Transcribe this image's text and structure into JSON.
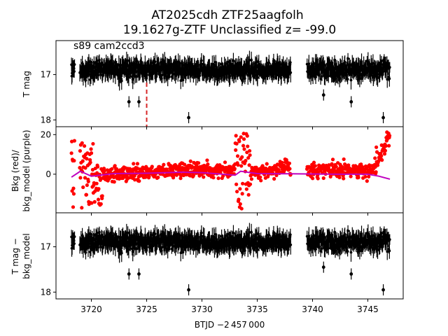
{
  "chart_data": {
    "title": [
      "AT2025cdh  ZTF25aagfolh",
      "19.1627g-ZTF Unclassified z= -99.0"
    ],
    "xlabel": "BTJD −2 457 000",
    "x_ticks": [
      3720,
      3725,
      3730,
      3735,
      3740,
      3745
    ],
    "xlim": [
      3716.8,
      3748.2
    ],
    "panels": [
      {
        "id": "top",
        "type": "scatter",
        "ylabel": "T mag",
        "ylim": [
          18.15,
          16.25
        ],
        "inverted": true,
        "y_ticks": [
          17,
          18
        ],
        "annotation": "s89 cam2ccd3",
        "vline_x": 3725.0,
        "series": [
          {
            "color": "#000000",
            "center": 16.9,
            "spread": 0.32,
            "gaps": [
              [
                3718.5,
                3718.95
              ],
              [
                3738.05,
                3739.5
              ]
            ],
            "outliers": [
              [
                3723.4,
                17.6
              ],
              [
                3724.3,
                17.6
              ],
              [
                3728.8,
                17.95
              ],
              [
                3746.4,
                17.95
              ],
              [
                3743.5,
                17.6
              ],
              [
                3741.0,
                17.45
              ]
            ]
          }
        ]
      },
      {
        "id": "middle",
        "type": "scatter",
        "ylabel": [
          "Bkg (red)/",
          "bkg_model (purple)"
        ],
        "ylim": [
          -19.5,
          24
        ],
        "inverted": false,
        "y_ticks": [
          0,
          20
        ],
        "series": [
          {
            "color": "#ff0000",
            "name": "Bkg"
          },
          {
            "color": "#bf00bf",
            "name": "bkg_model",
            "values": [
              [
                3718.2,
                -1.5
              ],
              [
                3719.0,
                1.5
              ],
              [
                3720.0,
                -1.0
              ],
              [
                3722.0,
                0.3
              ],
              [
                3725.0,
                0.5
              ],
              [
                3728.0,
                1.0
              ],
              [
                3730.0,
                0.8
              ],
              [
                3733.0,
                -0.5
              ],
              [
                3733.5,
                1.5
              ],
              [
                3735.0,
                0.3
              ],
              [
                3738.0,
                0.2
              ],
              [
                3742.0,
                0.0
              ],
              [
                3745.0,
                0.0
              ],
              [
                3746.0,
                -1.0
              ],
              [
                3747.0,
                -2.5
              ]
            ]
          }
        ]
      },
      {
        "id": "bottom",
        "type": "scatter",
        "ylabel": [
          "T mag −",
          "bkg_model"
        ],
        "ylim": [
          18.15,
          16.25
        ],
        "inverted": true,
        "y_ticks": [
          17,
          18
        ],
        "series": [
          {
            "color": "#000000",
            "center": 16.9,
            "spread": 0.32,
            "gaps": [
              [
                3718.5,
                3718.95
              ],
              [
                3738.05,
                3739.5
              ]
            ],
            "outliers": [
              [
                3723.4,
                17.6
              ],
              [
                3724.3,
                17.6
              ],
              [
                3728.8,
                17.95
              ],
              [
                3746.4,
                17.95
              ],
              [
                3743.5,
                17.6
              ],
              [
                3741.0,
                17.45
              ]
            ]
          }
        ]
      }
    ]
  }
}
